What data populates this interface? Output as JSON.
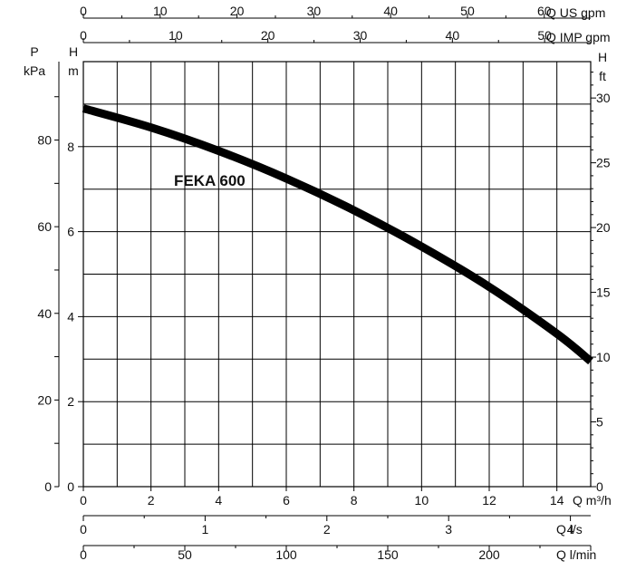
{
  "chart_data": {
    "type": "line",
    "title": "",
    "series": [
      {
        "name": "FEKA 600",
        "x": [
          0,
          2,
          4,
          6,
          8,
          10,
          12,
          14,
          15
        ],
        "y": [
          8.9,
          8.45,
          7.9,
          7.25,
          6.5,
          5.65,
          4.7,
          3.6,
          2.95
        ]
      }
    ],
    "axes": {
      "x_q_m3h": {
        "label": "Q m³/h",
        "range": [
          0,
          15
        ],
        "ticks": [
          0,
          2,
          4,
          6,
          8,
          10,
          12,
          14
        ]
      },
      "y_h_m": {
        "label_lines": [
          "H",
          "m"
        ],
        "range": [
          0,
          10
        ],
        "ticks": [
          0,
          2,
          4,
          6,
          8
        ]
      },
      "y_p_kpa": {
        "label_lines": [
          "P",
          "kPa"
        ],
        "ticks": [
          0,
          20,
          40,
          60,
          80
        ]
      },
      "y_h_ft": {
        "label_lines": [
          "H",
          "ft"
        ],
        "ticks": [
          0,
          5,
          10,
          15,
          20,
          25,
          30
        ]
      },
      "top_q_us_gpm": {
        "label": "Q US gpm",
        "ticks": [
          0,
          10,
          20,
          30,
          40,
          50,
          60
        ]
      },
      "top_q_imp_gpm": {
        "label": "Q IMP gpm",
        "ticks": [
          0,
          10,
          20,
          30,
          40,
          50
        ]
      },
      "bottom_q_ls": {
        "label": "Q l/s",
        "ticks": [
          0,
          1,
          2,
          3,
          4
        ]
      },
      "bottom_q_lmin": {
        "label": "Q l/min",
        "ticks": [
          0,
          50,
          100,
          150,
          200
        ]
      }
    },
    "grid": true
  },
  "colors": {
    "curve": "#000000",
    "grid": "#000000",
    "background": "#ffffff"
  }
}
